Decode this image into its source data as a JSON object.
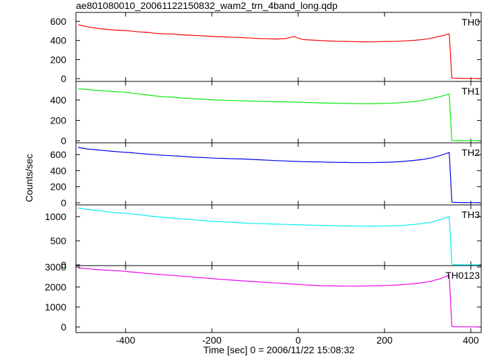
{
  "chart_data": {
    "type": "line",
    "title": "ae801080010_20061122150832_wam2_trn_4band_long.qdp",
    "x_label": "Time [sec] 0 = 2006/11/22 15:08:32",
    "y_label": "Counts/sec",
    "xlim": [
      -515,
      424
    ],
    "xticks": [
      -400,
      -200,
      0,
      200,
      400
    ],
    "x": [
      -510,
      -490,
      -470,
      -450,
      -430,
      -410,
      -390,
      -370,
      -350,
      -330,
      -310,
      -290,
      -270,
      -250,
      -230,
      -210,
      -190,
      -170,
      -150,
      -130,
      -110,
      -90,
      -70,
      -50,
      -30,
      -10,
      10,
      30,
      50,
      70,
      90,
      110,
      130,
      150,
      170,
      190,
      210,
      230,
      250,
      270,
      290,
      310,
      330,
      350,
      356,
      360,
      380,
      400,
      420
    ],
    "series": [
      {
        "name": "TH0",
        "color": "#ff0000",
        "ylim": [
          -29,
          694
        ],
        "yticks": [
          0,
          200,
          400,
          600
        ],
        "values": [
          565,
          545,
          530,
          520,
          510,
          505,
          500,
          490,
          485,
          475,
          470,
          468,
          460,
          455,
          450,
          445,
          440,
          438,
          432,
          430,
          425,
          420,
          418,
          415,
          420,
          440,
          410,
          405,
          400,
          395,
          392,
          390,
          388,
          386,
          385,
          388,
          390,
          392,
          396,
          402,
          410,
          425,
          445,
          470,
          8,
          5,
          3,
          2,
          2
        ]
      },
      {
        "name": "TH1",
        "color": "#00ee00",
        "ylim": [
          -20,
          583
        ],
        "yticks": [
          0,
          200,
          400
        ],
        "values": [
          510,
          505,
          495,
          490,
          485,
          480,
          470,
          460,
          450,
          440,
          432,
          428,
          420,
          415,
          410,
          405,
          400,
          398,
          395,
          392,
          390,
          388,
          385,
          383,
          382,
          380,
          378,
          375,
          372,
          370,
          368,
          366,
          365,
          364,
          364,
          366,
          368,
          372,
          378,
          386,
          398,
          415,
          435,
          460,
          5,
          3,
          2,
          2,
          2
        ]
      },
      {
        "name": "TH2",
        "color": "#0000ee",
        "ylim": [
          -26,
          746
        ],
        "yticks": [
          0,
          200,
          400,
          600
        ],
        "values": [
          690,
          670,
          660,
          650,
          640,
          632,
          625,
          615,
          605,
          598,
          590,
          585,
          578,
          570,
          565,
          560,
          555,
          552,
          548,
          545,
          540,
          535,
          530,
          525,
          520,
          515,
          512,
          510,
          508,
          505,
          503,
          502,
          500,
          500,
          500,
          502,
          505,
          510,
          518,
          528,
          540,
          560,
          590,
          625,
          10,
          5,
          3,
          2,
          2
        ]
      },
      {
        "name": "TH3",
        "color": "#00eeee",
        "ylim": [
          -14,
          1243
        ],
        "yticks": [
          0,
          500,
          1000
        ],
        "values": [
          1180,
          1150,
          1130,
          1110,
          1090,
          1075,
          1060,
          1040,
          1020,
          1000,
          985,
          970,
          955,
          940,
          925,
          910,
          900,
          890,
          880,
          870,
          860,
          855,
          850,
          845,
          840,
          835,
          830,
          825,
          820,
          815,
          810,
          808,
          805,
          803,
          802,
          805,
          810,
          815,
          825,
          840,
          860,
          890,
          940,
          1000,
          15,
          8,
          5,
          3,
          3
        ]
      },
      {
        "name": "TH0123",
        "color": "#ee00ee",
        "ylim": [
          -276,
          3069
        ],
        "yticks": [
          0,
          1000,
          2000,
          3000
        ],
        "values": [
          2950,
          2920,
          2880,
          2850,
          2820,
          2800,
          2760,
          2720,
          2680,
          2640,
          2610,
          2580,
          2540,
          2510,
          2470,
          2440,
          2400,
          2370,
          2340,
          2310,
          2280,
          2250,
          2220,
          2200,
          2170,
          2140,
          2110,
          2090,
          2070,
          2060,
          2050,
          2045,
          2045,
          2050,
          2060,
          2070,
          2080,
          2100,
          2130,
          2170,
          2220,
          2300,
          2420,
          2600,
          30,
          15,
          10,
          8,
          8
        ]
      }
    ]
  }
}
